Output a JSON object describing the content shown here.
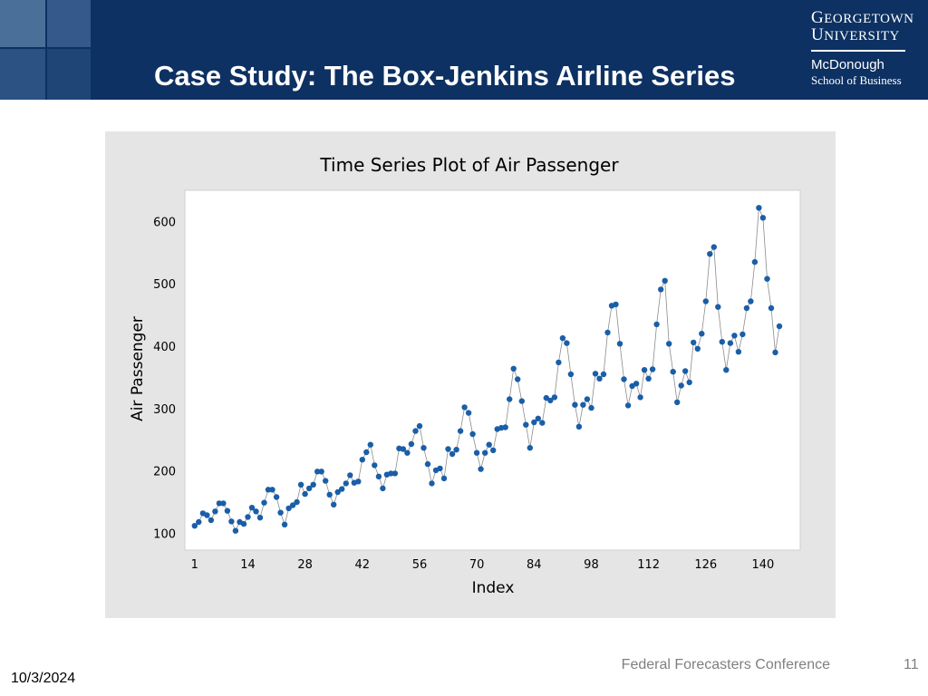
{
  "slide": {
    "title": "Case Study: The Box-Jenkins Airline Series",
    "footer_conference": "Federal Forecasters Conference",
    "page_number": "11",
    "date": "10/3/2024"
  },
  "logo": {
    "line1_cap": "G",
    "line1_rest": "EORGETOWN",
    "line2_cap": "U",
    "line2_rest": "NIVERSITY",
    "line3": "McDonough",
    "line4": "School of Business"
  },
  "colors": {
    "header_bg": "#0d3162",
    "point": "#1a5ea8",
    "line": "#8c8c8c"
  },
  "chart_data": {
    "type": "line",
    "title": "Time Series Plot of Air Passenger",
    "xlabel": "Index",
    "ylabel": "Air Passenger",
    "xticks": [
      1,
      14,
      28,
      42,
      56,
      70,
      84,
      98,
      112,
      126,
      140
    ],
    "yticks": [
      100,
      200,
      300,
      400,
      500,
      600
    ],
    "xlim": [
      -1.4,
      149.1
    ],
    "ylim": [
      73,
      650
    ],
    "grid": false,
    "legend": "none",
    "series": [
      {
        "values": [
          112,
          118,
          132,
          129,
          121,
          135,
          148,
          148,
          136,
          119,
          104,
          118,
          115,
          126,
          141,
          135,
          125,
          149,
          170,
          170,
          158,
          133,
          114,
          140,
          145,
          150,
          178,
          163,
          172,
          178,
          199,
          199,
          184,
          162,
          146,
          166,
          171,
          180,
          193,
          181,
          183,
          218,
          230,
          242,
          209,
          191,
          172,
          194,
          196,
          196,
          236,
          235,
          229,
          243,
          264,
          272,
          237,
          211,
          180,
          201,
          204,
          188,
          235,
          227,
          234,
          264,
          302,
          293,
          259,
          229,
          203,
          229,
          242,
          233,
          267,
          269,
          270,
          315,
          364,
          347,
          312,
          274,
          237,
          278,
          284,
          277,
          317,
          313,
          318,
          374,
          413,
          405,
          355,
          306,
          271,
          306,
          315,
          301,
          356,
          348,
          355,
          422,
          465,
          467,
          404,
          347,
          305,
          336,
          340,
          318,
          362,
          348,
          363,
          435,
          491,
          505,
          404,
          359,
          310,
          337,
          360,
          342,
          406,
          396,
          420,
          472,
          548,
          559,
          463,
          407,
          362,
          405,
          417,
          391,
          419,
          461,
          472,
          535,
          622,
          606,
          508,
          461,
          390,
          432
        ]
      }
    ]
  }
}
